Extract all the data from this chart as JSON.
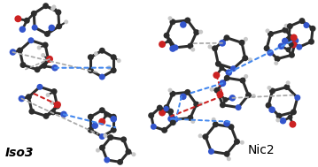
{
  "label_iso3": "Iso3",
  "label_nic2": "Nic2",
  "label_fontsize": 10,
  "background_color": "#ffffff",
  "C_color": "#2d2d2d",
  "N_color": "#3355cc",
  "O_color": "#cc2222",
  "H_color": "#c8c8c8",
  "bond_color": "#2d2d2d",
  "hbond_blue": "#4488ee",
  "hbond_red": "#cc2222",
  "hbond_gray": "#aaaaaa",
  "figsize": [
    3.59,
    1.89
  ],
  "dpi": 100
}
